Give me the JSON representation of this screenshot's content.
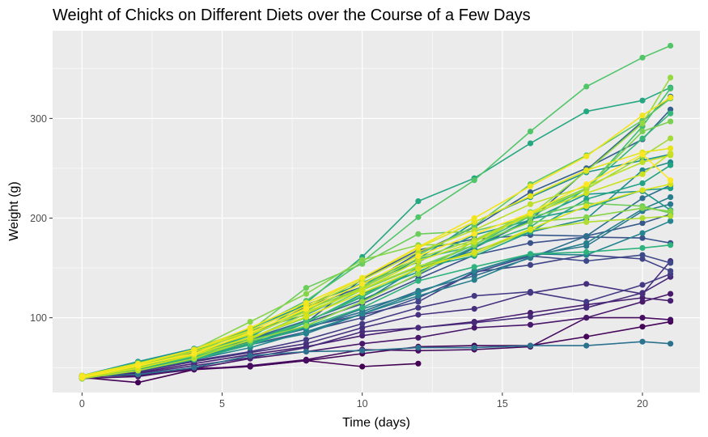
{
  "chart_data": {
    "type": "line",
    "title": "Weight of Chicks on Different Diets over the Course of a Few Days",
    "xlabel": "Time (days)",
    "ylabel": "Weight (g)",
    "xlim": [
      -1.05,
      22.05
    ],
    "ylim": [
      25,
      388
    ],
    "xticks": [
      0,
      5,
      10,
      15,
      20
    ],
    "yticks": [
      100,
      200,
      300
    ],
    "x_minor": [
      2.5,
      7.5,
      12.5,
      17.5
    ],
    "y_minor": [
      50,
      150,
      250,
      350
    ],
    "grid": true,
    "legend": "none",
    "background": "#ebebeb",
    "gridline_color": "#ffffff",
    "x": [
      0,
      2,
      4,
      6,
      8,
      10,
      12,
      14,
      16,
      18,
      20,
      21
    ],
    "series": [
      {
        "color": "#440154",
        "values": [
          40,
          35,
          48,
          51,
          57,
          51,
          54,
          null,
          null,
          null,
          null,
          null
        ]
      },
      {
        "color": "#450559",
        "values": [
          40,
          43,
          49,
          51,
          57,
          64,
          71,
          72,
          72,
          81,
          91,
          96
        ]
      },
      {
        "color": "#470d60",
        "values": [
          41,
          42,
          48,
          52,
          58,
          68,
          67,
          68,
          71,
          100,
          100,
          98
        ]
      },
      {
        "color": "#48186a",
        "values": [
          39,
          41,
          49,
          59,
          66,
          74,
          80,
          90,
          93,
          100,
          116,
          124
        ]
      },
      {
        "color": "#481f70",
        "values": [
          42,
          45,
          54,
          63,
          71,
          82,
          90,
          96,
          105,
          113,
          120,
          117
        ]
      },
      {
        "color": "#472a7a",
        "values": [
          41,
          44,
          52,
          60,
          70,
          86,
          90,
          95,
          101,
          110,
          125,
          141
        ]
      },
      {
        "color": "#46307e",
        "values": [
          40,
          46,
          56,
          65,
          74,
          90,
          103,
          109,
          125,
          134,
          124,
          157
        ]
      },
      {
        "color": "#443983",
        "values": [
          42,
          48,
          57,
          66,
          78,
          94,
          110,
          122,
          126,
          116,
          133,
          144
        ]
      },
      {
        "color": "#414487",
        "values": [
          41,
          49,
          60,
          73,
          91,
          103,
          116,
          146,
          153,
          163,
          159,
          147
        ]
      },
      {
        "color": "#3e4989",
        "values": [
          39,
          46,
          58,
          73,
          86,
          100,
          120,
          145,
          162,
          157,
          163,
          155
        ]
      },
      {
        "color": "#3b528b",
        "values": [
          41,
          48,
          61,
          76,
          95,
          114,
          139,
          163,
          175,
          181,
          180,
          175
        ]
      },
      {
        "color": "#38598c",
        "values": [
          40,
          49,
          63,
          78,
          95,
          139,
          168,
          179,
          183,
          182,
          195,
          204
        ]
      },
      {
        "color": "#355f8d",
        "values": [
          42,
          53,
          65,
          82,
          111,
          131,
          165,
          191,
          226,
          250,
          279,
          309
        ]
      },
      {
        "color": "#31688e",
        "values": [
          41,
          51,
          64,
          79,
          97,
          118,
          143,
          170,
          198,
          248,
          297,
          322
        ]
      },
      {
        "color": "#2e6e8e",
        "values": [
          40,
          50,
          62,
          74,
          90,
          106,
          127,
          142,
          160,
          182,
          220,
          233
        ]
      },
      {
        "color": "#2c728e",
        "values": [
          41,
          43,
          50,
          62,
          66,
          67,
          70,
          70,
          72,
          72,
          76,
          74
        ]
      },
      {
        "color": "#2a788e",
        "values": [
          40,
          51,
          59,
          75,
          89,
          109,
          125,
          147,
          163,
          172,
          207,
          214
        ]
      },
      {
        "color": "#277f8e",
        "values": [
          42,
          50,
          61,
          73,
          84,
          104,
          122,
          138,
          161,
          175,
          209,
          221
        ]
      },
      {
        "color": "#25848e",
        "values": [
          40,
          47,
          58,
          70,
          86,
          104,
          125,
          147,
          164,
          163,
          185,
          197
        ]
      },
      {
        "color": "#228b8d",
        "values": [
          41,
          49,
          60,
          74,
          92,
          116,
          150,
          167,
          186,
          199,
          248,
          256
        ]
      },
      {
        "color": "#20928c",
        "values": [
          40,
          52,
          66,
          87,
          103,
          130,
          159,
          196,
          221,
          246,
          258,
          264
        ]
      },
      {
        "color": "#1f968b",
        "values": [
          42,
          56,
          69,
          89,
          113,
          134,
          156,
          183,
          198,
          224,
          227,
          208
        ]
      },
      {
        "color": "#1f9e89",
        "values": [
          39,
          49,
          59,
          73,
          95,
          124,
          146,
          171,
          199,
          210,
          228,
          230
        ]
      },
      {
        "color": "#22a384",
        "values": [
          41,
          50,
          62,
          77,
          96,
          121,
          150,
          162,
          186,
          219,
          235,
          253
        ]
      },
      {
        "color": "#25a782",
        "values": [
          40,
          48,
          60,
          80,
          115,
          161,
          217,
          240,
          275,
          307,
          318,
          331
        ]
      },
      {
        "color": "#2eb37c",
        "values": [
          41,
          47,
          58,
          73,
          91,
          110,
          137,
          151,
          164,
          166,
          170,
          173
        ]
      },
      {
        "color": "#35b779",
        "values": [
          40,
          51,
          63,
          82,
          107,
          135,
          159,
          172,
          191,
          230,
          280,
          305
        ]
      },
      {
        "color": "#44bf70",
        "values": [
          41,
          49,
          61,
          75,
          96,
          122,
          149,
          173,
          202,
          229,
          292,
          330
        ]
      },
      {
        "color": "#52c569",
        "values": [
          42,
          55,
          67,
          88,
          117,
          156,
          201,
          238,
          287,
          332,
          361,
          373
        ]
      },
      {
        "color": "#5ec962",
        "values": [
          39,
          52,
          63,
          79,
          104,
          131,
          163,
          192,
          234,
          263,
          298,
          320
        ]
      },
      {
        "color": "#6ccd5a",
        "values": [
          41,
          53,
          66,
          87,
          130,
          154,
          184,
          187,
          201,
          215,
          212,
          205
        ]
      },
      {
        "color": "#7ad151",
        "values": [
          40,
          51,
          64,
          80,
          100,
          128,
          151,
          173,
          206,
          230,
          287,
          297
        ]
      },
      {
        "color": "#86d549",
        "values": [
          41,
          52,
          68,
          96,
          124,
          158,
          173,
          174,
          196,
          201,
          210,
          207
        ]
      },
      {
        "color": "#95d840",
        "values": [
          40,
          50,
          62,
          77,
          92,
          116,
          144,
          177,
          203,
          247,
          295,
          341
        ]
      },
      {
        "color": "#a2da37",
        "values": [
          41,
          53,
          68,
          85,
          108,
          130,
          160,
          178,
          205,
          229,
          262,
          280
        ]
      },
      {
        "color": "#b0dd2f",
        "values": [
          39,
          47,
          59,
          78,
          104,
          129,
          152,
          164,
          188,
          196,
          200,
          202
        ]
      },
      {
        "color": "#bddf26",
        "values": [
          40,
          52,
          64,
          84,
          110,
          138,
          166,
          188,
          214,
          232,
          256,
          263
        ]
      },
      {
        "color": "#cae11f",
        "values": [
          41,
          51,
          66,
          83,
          106,
          128,
          157,
          176,
          204,
          225,
          244,
          265
        ]
      },
      {
        "color": "#d8e219",
        "values": [
          40,
          49,
          63,
          80,
          101,
          125,
          149,
          166,
          189,
          212,
          228,
          234
        ]
      },
      {
        "color": "#e5e419",
        "values": [
          41,
          53,
          68,
          87,
          112,
          140,
          170,
          196,
          222,
          248,
          266,
          270
        ]
      },
      {
        "color": "#f1e51d",
        "values": [
          42,
          54,
          68,
          90,
          115,
          140,
          171,
          200,
          232,
          262,
          303,
          321
        ]
      },
      {
        "color": "#fde725",
        "values": [
          40,
          52,
          64,
          85,
          109,
          134,
          162,
          184,
          205,
          234,
          264,
          238
        ]
      }
    ]
  }
}
